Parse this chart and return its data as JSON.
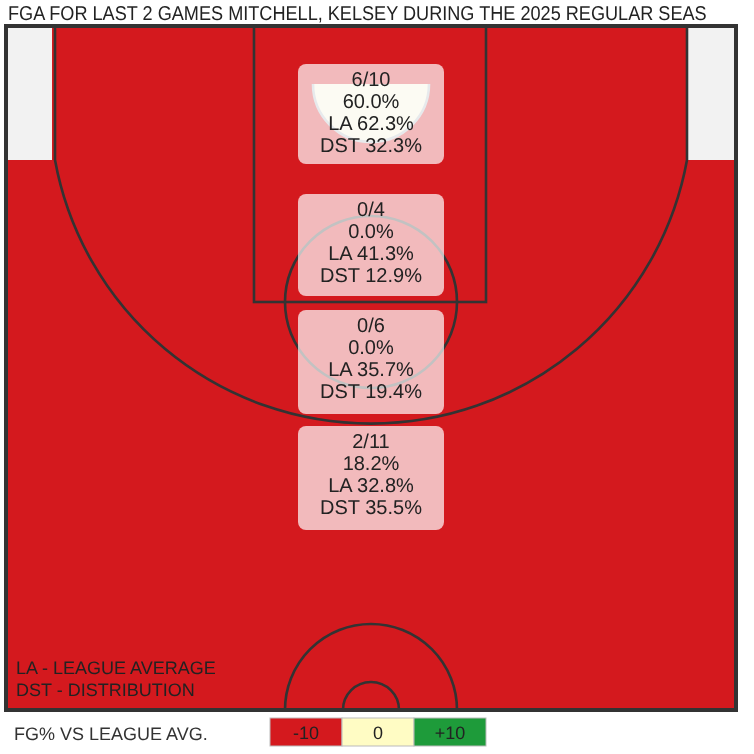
{
  "chart_data": {
    "type": "other",
    "title": "FGA FOR LAST 2 GAMES MITCHELL, KELSEY DURING THE 2025 REGULAR SEAS",
    "categories": [
      null,
      null,
      null,
      null
    ],
    "values": [
      60.0,
      0.0,
      0.0,
      18.2
    ],
    "value_labels": [
      "6/10\n60.0%\nLA 62.3%\nDST 32.3%",
      "0/4\n0.0%\nLA 41.3%\nDST 12.9%",
      "0/6\n0.0%\nLA 35.7%\nDST 19.4%",
      "2/11\n18.2%\nLA 32.8%\nDST 35.5%"
    ],
    "colors": [
      "#f4f1d8",
      "#d4191e",
      "#d4191e",
      "#d4191e"
    ],
    "annotations": [
      "LA - LEAGUE AVERAGE",
      "DST - DISTRIBUTION",
      "-10",
      "0",
      "+10"
    ],
    "clabel": "FG% VS LEAGUE AVG."
  }
}
